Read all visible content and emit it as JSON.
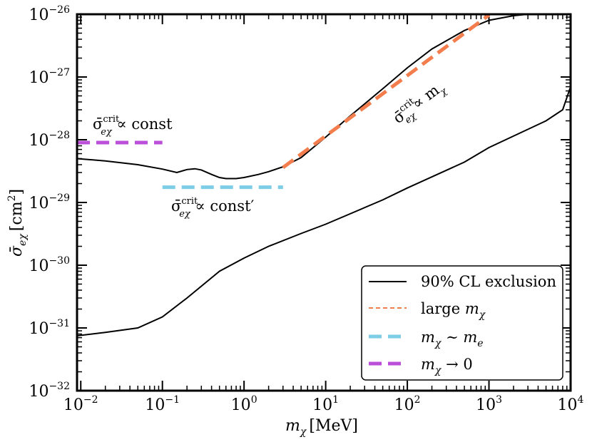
{
  "chart_data": {
    "type": "line",
    "xscale": "log",
    "yscale": "log",
    "xlim": [
      0.009,
      10000
    ],
    "ylim": [
      1e-32,
      1e-26
    ],
    "xlabel": {
      "var": "m",
      "sub": "χ",
      "unit": "[MeV]"
    },
    "ylabel": {
      "var": "σ̄",
      "sub": "eχ",
      "unit": "[cm",
      "unit_sup": "2",
      "unit_close": "]"
    },
    "xticks": [
      {
        "value": 0.01,
        "base": "10",
        "exp": "−2"
      },
      {
        "value": 0.1,
        "base": "10",
        "exp": "−1"
      },
      {
        "value": 1,
        "base": "10",
        "exp": "0"
      },
      {
        "value": 10,
        "base": "10",
        "exp": "1"
      },
      {
        "value": 100,
        "base": "10",
        "exp": "2"
      },
      {
        "value": 1000,
        "base": "10",
        "exp": "3"
      },
      {
        "value": 10000,
        "base": "10",
        "exp": "4"
      }
    ],
    "yticks": [
      {
        "value": 1e-32,
        "base": "10",
        "exp": "−32"
      },
      {
        "value": 1e-31,
        "base": "10",
        "exp": "−31"
      },
      {
        "value": 1e-30,
        "base": "10",
        "exp": "−30"
      },
      {
        "value": 1e-29,
        "base": "10",
        "exp": "−29"
      },
      {
        "value": 1e-28,
        "base": "10",
        "exp": "−28"
      },
      {
        "value": 1e-27,
        "base": "10",
        "exp": "−27"
      },
      {
        "value": 1e-26,
        "base": "10",
        "exp": "−26"
      }
    ],
    "series": [
      {
        "name": "90% CL exclusion",
        "color": "#000000",
        "style": "solid",
        "upper": {
          "x": [
            0.009,
            0.02,
            0.05,
            0.1,
            0.15,
            0.2,
            0.25,
            0.3,
            0.4,
            0.5,
            0.6,
            0.8,
            1.0,
            1.5,
            2.0,
            3.0,
            5.0,
            10,
            20,
            50,
            100,
            200,
            500,
            1000,
            2000,
            3000,
            10000
          ],
          "y": [
            5e-29,
            4.6e-29,
            4e-29,
            3.4e-29,
            3e-29,
            3.35e-29,
            3.45e-29,
            3.3e-29,
            2.8e-29,
            2.5e-29,
            2.4e-29,
            2.4e-29,
            2.5e-29,
            2.8e-29,
            3.1e-29,
            3.7e-29,
            5.2e-29,
            1.1e-28,
            2.4e-28,
            6.5e-28,
            1.4e-27,
            2.8e-27,
            5.5e-27,
            8e-27,
            9.5e-27,
            1e-26,
            1e-26
          ]
        },
        "lower": {
          "x": [
            0.009,
            0.02,
            0.05,
            0.1,
            0.2,
            0.5,
            1,
            2,
            5,
            10,
            50,
            100,
            500,
            1000,
            5000,
            8000,
            10000
          ],
          "y": [
            7.5e-32,
            8.5e-32,
            1e-31,
            1.5e-31,
            3e-31,
            8e-31,
            1.3e-30,
            2e-30,
            3.2e-30,
            4.5e-30,
            1.1e-29,
            1.7e-29,
            4.4e-29,
            7.5e-29,
            2e-28,
            3e-28,
            7e-28
          ]
        }
      },
      {
        "name": "large m_χ",
        "color": "#f47d4d",
        "style": "dashed",
        "x": [
          3,
          1000
        ],
        "y": [
          3.6e-29,
          9.7e-27
        ]
      },
      {
        "name": "m_χ ∼ m_e",
        "color": "#7ecde6",
        "style": "dashed",
        "x": [
          0.1,
          3
        ],
        "y": [
          1.75e-29,
          1.75e-29
        ]
      },
      {
        "name": "m_χ → 0",
        "color": "#bb4fd8",
        "style": "dashed",
        "x": [
          0.009,
          0.1
        ],
        "y": [
          9e-29,
          9e-29
        ]
      }
    ],
    "annotations": {
      "const": {
        "prefix": "σ̄",
        "sub": "eχ",
        "sup": "crit",
        "rel": " ∝ const"
      },
      "const_prime": {
        "prefix": "σ̄",
        "sub": "eχ",
        "sup": "crit",
        "rel": " ∝ const′"
      },
      "large": {
        "prefix": "σ̄",
        "sub": "eχ",
        "sup": "crit",
        "rel": " ∝ m",
        "rel_sub": "χ"
      }
    },
    "legend": {
      "position": "bottom-right",
      "entries": [
        {
          "label": "90% CL exclusion"
        },
        {
          "label_pre": "large ",
          "var": "m",
          "sub": "χ"
        },
        {
          "var": "m",
          "sub": "χ",
          "rel": " ∼ ",
          "var2": "m",
          "sub2": "e"
        },
        {
          "var": "m",
          "sub": "χ",
          "rel": " → 0"
        }
      ]
    }
  }
}
